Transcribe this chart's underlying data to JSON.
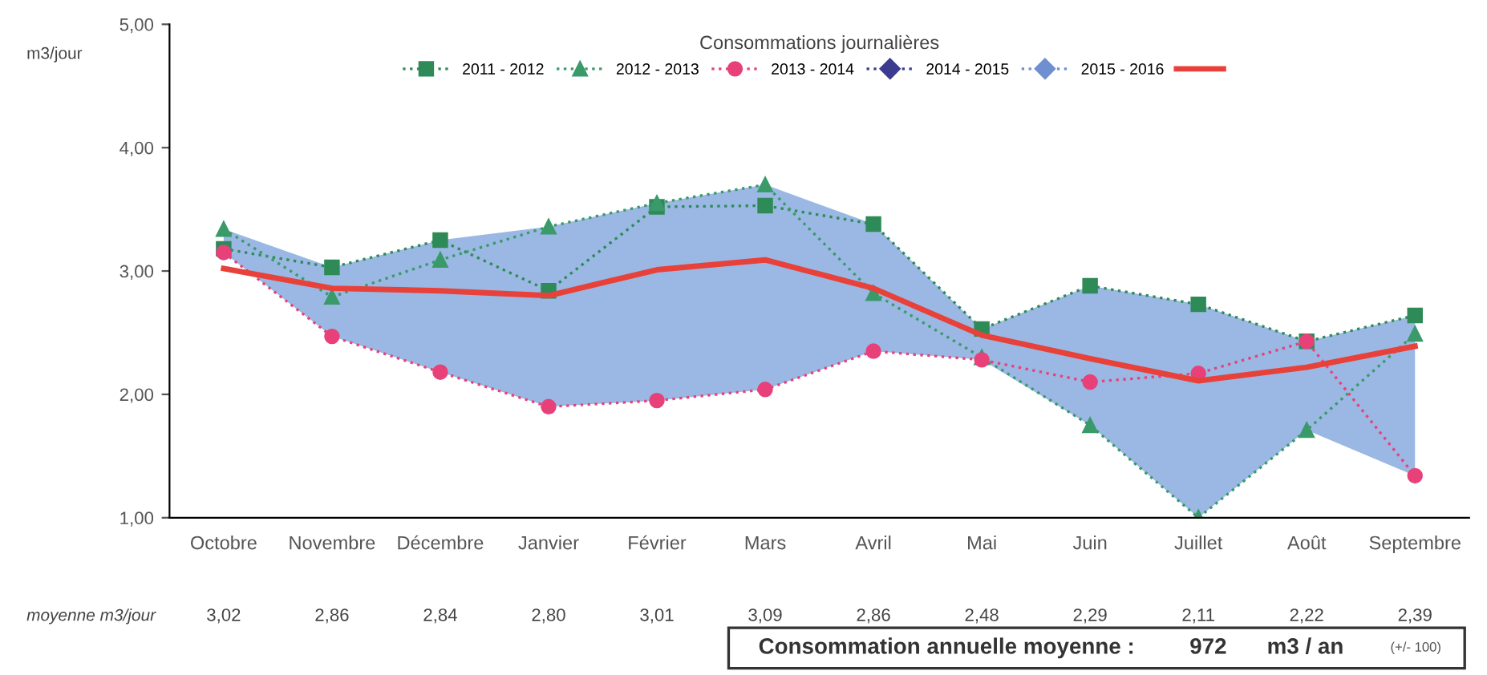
{
  "chart_data": {
    "type": "line",
    "title": "Consommations journalières",
    "ylabel": "m3/jour",
    "categories": [
      "Octobre",
      "Novembre",
      "Décembre",
      "Janvier",
      "Février",
      "Mars",
      "Avril",
      "Mai",
      "Juin",
      "Juillet",
      "Août",
      "Septembre"
    ],
    "series": [
      {
        "name": "2011 - 2012",
        "color": "#2e8b57",
        "marker": "square",
        "line_style": "dotted",
        "values": [
          3.18,
          3.03,
          3.25,
          2.84,
          3.52,
          3.53,
          3.38,
          2.53,
          2.88,
          2.73,
          2.43,
          2.64
        ]
      },
      {
        "name": "2012 - 2013",
        "color": "#3a9a6a",
        "marker": "triangle",
        "line_style": "dotted",
        "values": [
          3.34,
          2.79,
          3.09,
          3.36,
          3.55,
          3.7,
          2.82,
          2.3,
          1.75,
          1.0,
          1.71,
          2.49
        ]
      },
      {
        "name": "2013 - 2014",
        "color": "#e8417a",
        "marker": "circle",
        "line_style": "dotted",
        "values": [
          3.15,
          2.47,
          2.18,
          1.9,
          1.95,
          2.04,
          2.35,
          2.28,
          2.1,
          2.17,
          2.43,
          1.34
        ]
      },
      {
        "name": "2014 - 2015",
        "color": "#3b3b8f",
        "marker": "diamond",
        "line_style": "dotted",
        "values": [
          null,
          null,
          null,
          null,
          null,
          null,
          null,
          null,
          null,
          null,
          null,
          null
        ]
      },
      {
        "name": "2015 - 2016",
        "color": "#6f8fd0",
        "marker": "diamond",
        "line_style": "dotted",
        "values": [
          null,
          null,
          null,
          null,
          null,
          null,
          null,
          null,
          null,
          null,
          null,
          null
        ]
      },
      {
        "color": "#e8413a",
        "marker": "none",
        "line_style": "solid",
        "values": [
          3.02,
          2.86,
          2.84,
          2.8,
          3.01,
          3.09,
          2.86,
          2.48,
          2.29,
          2.11,
          2.22,
          2.39
        ],
        "value_labels": [
          "3,02",
          "2,86",
          "2,84",
          "2,80",
          "3,01",
          "3,09",
          "2,86",
          "2,48",
          "2,29",
          "2,11",
          "2,22",
          "2,39"
        ],
        "lower": [
          3.15,
          2.47,
          2.18,
          1.9,
          1.95,
          2.04,
          2.35,
          2.28,
          1.75,
          1.0,
          1.71,
          1.34
        ],
        "upper": [
          3.34,
          3.03,
          3.25,
          3.36,
          3.55,
          3.7,
          3.38,
          2.53,
          2.88,
          2.73,
          2.43,
          2.64
        ]
      }
    ],
    "ylim": [
      1,
      5
    ],
    "yticks": [
      {
        "value": 1,
        "label": "1,00"
      },
      {
        "value": 2,
        "label": "2,00"
      },
      {
        "value": 3,
        "label": "3,00"
      },
      {
        "value": 4,
        "label": "4,00"
      },
      {
        "value": 5,
        "label": "5,00"
      }
    ],
    "grid": false,
    "legend": "top",
    "annotations": [
      "moyenne m3/jour",
      "Consommation annuelle moyenne :",
      "972",
      "m3 / an",
      "(+/- 100)"
    ]
  }
}
